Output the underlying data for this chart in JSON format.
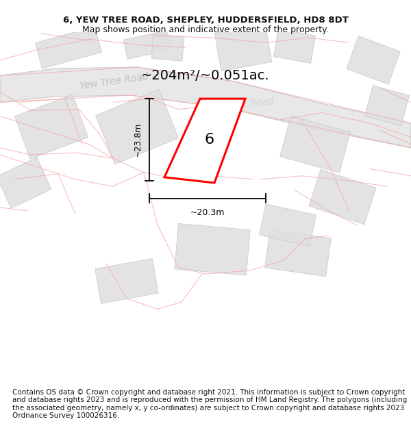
{
  "title_line1": "6, YEW TREE ROAD, SHEPLEY, HUDDERSFIELD, HD8 8DT",
  "title_line2": "Map shows position and indicative extent of the property.",
  "area_text": "~204m²/~0.051ac.",
  "dim_width": "~20.3m",
  "dim_height": "~23.8m",
  "plot_number": "6",
  "footer_text": "Contains OS data © Crown copyright and database right 2021. This information is subject to Crown copyright and database rights 2023 and is reproduced with the permission of HM Land Registry. The polygons (including the associated geometry, namely x, y co-ordinates) are subject to Crown copyright and database rights 2023 Ordnance Survey 100026316.",
  "bg_color": "#f8f8f8",
  "road_fill": "#e8e8e8",
  "road_edge": "#c8c8c8",
  "building_fill": "#e0e0e0",
  "building_edge": "#c8c8c8",
  "pink": "#f5aaaa",
  "highlight": "#ff0000",
  "dim_line_color": "#000000",
  "road_label_color": "#c0c0c0",
  "title_fontsize": 9.5,
  "subtitle_fontsize": 9.0,
  "footer_fontsize": 7.5,
  "area_fontsize": 14,
  "plot_num_fontsize": 16,
  "dim_fontsize": 9,
  "road_label_fontsize": 10
}
